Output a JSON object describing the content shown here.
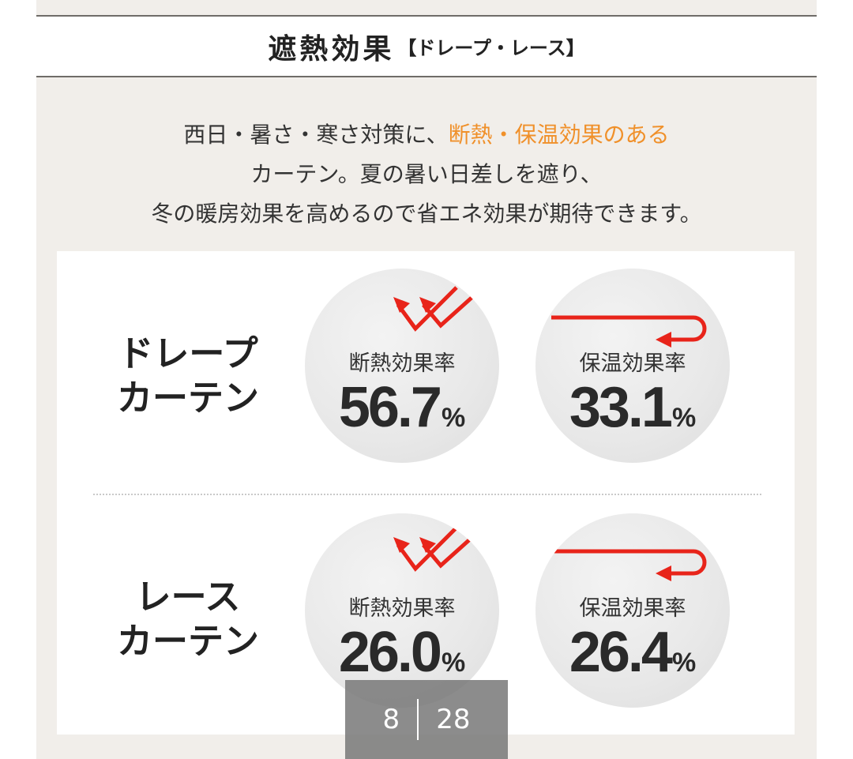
{
  "header": {
    "title": "遮熱効果",
    "subtitle": "【ドレープ・レース】"
  },
  "intro": {
    "line1_prefix": "西日・暑さ・寒さ対策に、",
    "line1_accent": "断熱・保温効果のある",
    "line2": "カーテン。夏の暑い日差しを遮り、",
    "line3": "冬の暖房効果を高めるので省エネ効果が期待できます。",
    "accent_color": "#f0902a"
  },
  "rows": [
    {
      "label_line1": "ドレープ",
      "label_line2": "カーテン",
      "insulation": {
        "label": "断熱効果率",
        "value": "56.7",
        "unit": "%",
        "icon": "reflect-arrows-icon"
      },
      "warmth": {
        "label": "保温効果率",
        "value": "33.1",
        "unit": "%",
        "icon": "return-arrow-icon"
      }
    },
    {
      "label_line1": "レース",
      "label_line2": "カーテン",
      "insulation": {
        "label": "断熱効果率",
        "value": "26.0",
        "unit": "%",
        "icon": "reflect-arrows-icon"
      },
      "warmth": {
        "label": "保温効果率",
        "value": "26.4",
        "unit": "%",
        "icon": "return-arrow-icon"
      }
    }
  ],
  "pager": {
    "current": "8",
    "total": "28"
  },
  "colors": {
    "arrow": "#e8241a",
    "panel": "#f1eeea"
  }
}
